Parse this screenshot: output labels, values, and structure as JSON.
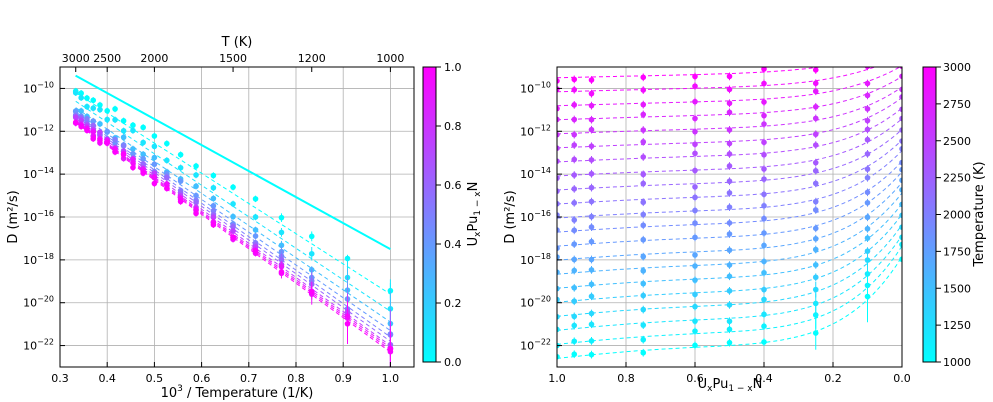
{
  "chart_data": [
    {
      "type": "scatter",
      "xlabel": "10",
      "xlabel_sup": "3",
      "xlabel_rest": " / Temperature (1/K)",
      "ylabel": "D (m²/s)",
      "top_axis_label": "T (K)",
      "x_ticks": [
        "0.3",
        "0.4",
        "0.5",
        "0.6",
        "0.7",
        "0.8",
        "0.9",
        "1.0"
      ],
      "x_tick_values": [
        0.3,
        0.4,
        0.5,
        0.6,
        0.7,
        0.8,
        0.9,
        1.0
      ],
      "top_ticks": [
        "3000",
        "2500",
        "2000",
        "1500",
        "1200",
        "1000"
      ],
      "top_tick_values": [
        3000,
        2500,
        2000,
        1500,
        1200,
        1000
      ],
      "y_tick_exponents": [
        -10,
        -12,
        -14,
        -16,
        -18,
        -20,
        -22
      ],
      "y_tick_base": "10",
      "xlim": [
        0.3,
        1.05
      ],
      "ylog_range": [
        -23,
        -9
      ],
      "grid": true,
      "series_description": "Arrhenius lines for compositions x = 0.0 (cyan) to 1.0 (magenta)",
      "solid_line": {
        "x": [
          0.333,
          1.0
        ],
        "log_y": [
          -9.4,
          -17.5
        ]
      },
      "composition_lines": [
        {
          "x_comp": 0.0,
          "log_y_start": -10.2,
          "log_y_end": -19.6
        },
        {
          "x_comp": 0.1,
          "log_y_start": -10.6,
          "log_y_end": -20.4
        },
        {
          "x_comp": 0.25,
          "log_y_start": -10.9,
          "log_y_end": -20.9
        },
        {
          "x_comp": 0.4,
          "log_y_start": -11.1,
          "log_y_end": -21.3
        },
        {
          "x_comp": 0.5,
          "log_y_start": -11.2,
          "log_y_end": -21.6
        },
        {
          "x_comp": 0.6,
          "log_y_start": -11.3,
          "log_y_end": -21.8
        },
        {
          "x_comp": 0.75,
          "log_y_start": -11.4,
          "log_y_end": -22.0
        },
        {
          "x_comp": 0.9,
          "log_y_start": -11.5,
          "log_y_end": -22.1
        },
        {
          "x_comp": 0.95,
          "log_y_start": -11.55,
          "log_y_end": -22.2
        },
        {
          "x_comp": 1.0,
          "log_y_start": -11.6,
          "log_y_end": -22.3
        }
      ],
      "colorbar": {
        "label_prefix": "U",
        "label_x": "x",
        "label_mid": "Pu",
        "label_sub": "1 − x",
        "label_suffix": "N",
        "ticks": [
          "0.0",
          "0.2",
          "0.4",
          "0.6",
          "0.8",
          "1.0"
        ],
        "tick_values": [
          0.0,
          0.2,
          0.4,
          0.6,
          0.8,
          1.0
        ]
      }
    },
    {
      "type": "scatter",
      "xlabel_prefix": "U",
      "xlabel_x": "x",
      "xlabel_mid": "Pu",
      "xlabel_sub": "1 − x",
      "xlabel_suffix": "N",
      "ylabel": "D (m²/s)",
      "x_ticks": [
        "1.0",
        "0.8",
        "0.6",
        "0.4",
        "0.2",
        "0.0"
      ],
      "x_tick_values": [
        1.0,
        0.8,
        0.6,
        0.4,
        0.2,
        0.0
      ],
      "y_tick_exponents": [
        -10,
        -12,
        -14,
        -16,
        -18,
        -20,
        -22
      ],
      "y_tick_base": "10",
      "xlim": [
        1.0,
        0.0
      ],
      "ylog_range": [
        -23,
        -9
      ],
      "grid": true,
      "compositions": [
        1.0,
        0.95,
        0.9,
        0.75,
        0.6,
        0.5,
        0.4,
        0.25,
        0.1,
        0.0
      ],
      "temperatures": [
        3000,
        2900,
        2800,
        2700,
        2600,
        2500,
        2400,
        2300,
        2200,
        2100,
        2000,
        1900,
        1800,
        1700,
        1600,
        1500,
        1400,
        1300,
        1200,
        1100,
        1000
      ],
      "colorbar": {
        "label": "Temperature (K)",
        "ticks": [
          "1000",
          "1250",
          "1500",
          "1750",
          "2000",
          "2250",
          "2500",
          "2750",
          "3000"
        ],
        "tick_values": [
          1000,
          1250,
          1500,
          1750,
          2000,
          2250,
          2500,
          2750,
          3000
        ]
      },
      "colors": {
        "low": "#00ffff",
        "high": "#ff00ff"
      }
    }
  ]
}
